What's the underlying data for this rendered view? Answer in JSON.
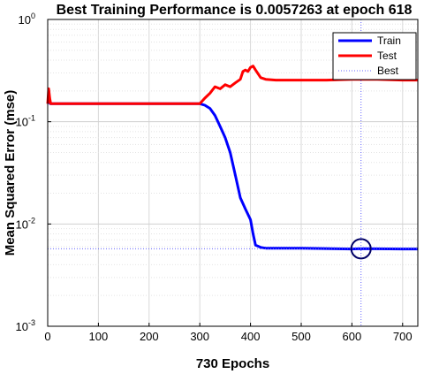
{
  "chart_data": {
    "type": "line",
    "title": "Best Training Performance is 0.0057263 at epoch 618",
    "xlabel": "730 Epochs",
    "ylabel": "Mean Squared Error  (mse)",
    "xlim": [
      0,
      730
    ],
    "ylim": [
      0.001,
      1
    ],
    "yscale": "log",
    "grid": true,
    "legend_position": "top-right",
    "xticks": [
      0,
      100,
      200,
      300,
      400,
      500,
      600,
      700
    ],
    "yticks": [
      {
        "value": 0.001,
        "base": "10",
        "exp": "-3"
      },
      {
        "value": 0.01,
        "base": "10",
        "exp": "-2"
      },
      {
        "value": 0.1,
        "base": "10",
        "exp": "-1"
      },
      {
        "value": 1,
        "base": "10",
        "exp": "0"
      }
    ],
    "series": [
      {
        "name": "Train",
        "color": "#0000ff",
        "x": [
          0,
          2,
          5,
          10,
          50,
          100,
          200,
          300,
          310,
          320,
          330,
          340,
          350,
          360,
          370,
          380,
          390,
          400,
          405,
          410,
          420,
          430,
          450,
          500,
          600,
          618,
          700,
          730
        ],
        "y": [
          0.15,
          0.16,
          0.15,
          0.15,
          0.15,
          0.15,
          0.15,
          0.15,
          0.145,
          0.135,
          0.115,
          0.09,
          0.07,
          0.05,
          0.03,
          0.018,
          0.014,
          0.011,
          0.008,
          0.0062,
          0.0059,
          0.0058,
          0.0058,
          0.0058,
          0.0057,
          0.0057263,
          0.0057,
          0.0057
        ]
      },
      {
        "name": "Test",
        "color": "#ff0000",
        "x": [
          0,
          2,
          4,
          6,
          10,
          50,
          100,
          200,
          300,
          310,
          320,
          330,
          340,
          350,
          360,
          370,
          380,
          385,
          390,
          395,
          400,
          405,
          410,
          420,
          430,
          450,
          500,
          550,
          600,
          650,
          700,
          730
        ],
        "y": [
          0.15,
          0.21,
          0.17,
          0.15,
          0.15,
          0.15,
          0.15,
          0.15,
          0.15,
          0.17,
          0.19,
          0.22,
          0.21,
          0.23,
          0.22,
          0.24,
          0.26,
          0.31,
          0.32,
          0.31,
          0.34,
          0.35,
          0.32,
          0.27,
          0.26,
          0.255,
          0.255,
          0.255,
          0.26,
          0.26,
          0.255,
          0.255
        ]
      },
      {
        "name": "Best",
        "color": "#6464ff",
        "style": "dotted",
        "best_epoch": 618,
        "best_value": 0.0057263
      }
    ]
  }
}
